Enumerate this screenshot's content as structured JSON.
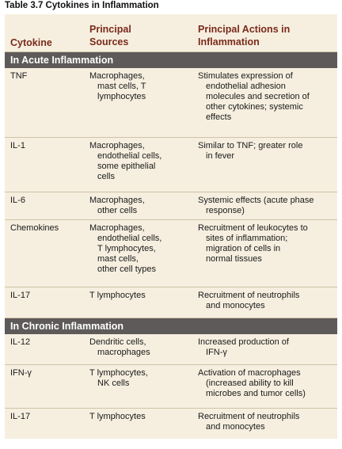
{
  "caption": "Table 3.7 Cytokines in Inflammation",
  "headers": {
    "cytokine": "Cytokine",
    "sources_1": "Principal",
    "sources_2": "Sources",
    "actions_1": "Principal Actions in",
    "actions_2": "Inflammation"
  },
  "sections": [
    {
      "title": "In Acute Inflammation",
      "rows": [
        {
          "cytokine": "TNF",
          "sources": [
            "Macrophages,",
            "mast cells, T",
            "lymphocytes"
          ],
          "actions": [
            "Stimulates expression of",
            "endothelial adhesion",
            "molecules and secretion of",
            "other cytokines; systemic",
            "effects"
          ]
        },
        {
          "cytokine": "IL-1",
          "sources": [
            "Macrophages,",
            "endothelial cells,",
            "some epithelial",
            "cells"
          ],
          "actions": [
            "Similar to TNF; greater role",
            "in fever"
          ]
        },
        {
          "cytokine": "IL-6",
          "sources": [
            "Macrophages,",
            "other cells"
          ],
          "actions": [
            "Systemic effects (acute phase",
            "response)"
          ]
        },
        {
          "cytokine": "Chemokines",
          "sources": [
            "Macrophages,",
            "endothelial cells,",
            "T lymphocytes,",
            "mast cells,",
            "other cell types"
          ],
          "actions": [
            "Recruitment of leukocytes to",
            "sites of inflammation;",
            "migration of cells in",
            "normal tissues"
          ]
        },
        {
          "cytokine": "IL-17",
          "sources": [
            "T lymphocytes"
          ],
          "actions": [
            "Recruitment of neutrophils",
            "and monocytes"
          ]
        }
      ]
    },
    {
      "title": "In Chronic Inflammation",
      "rows": [
        {
          "cytokine": "IL-12",
          "sources": [
            "Dendritic cells,",
            "macrophages"
          ],
          "actions": [
            "Increased production of",
            "IFN-γ"
          ]
        },
        {
          "cytokine": "IFN-γ",
          "sources": [
            "T lymphocytes,",
            "NK cells"
          ],
          "actions": [
            "Activation of macrophages",
            "(increased ability to kill",
            "microbes and tumor cells)"
          ]
        },
        {
          "cytokine": "IL-17",
          "sources": [
            "T lymphocytes"
          ],
          "actions": [
            "Recruitment of neutrophils",
            "and monocytes"
          ]
        }
      ]
    }
  ]
}
